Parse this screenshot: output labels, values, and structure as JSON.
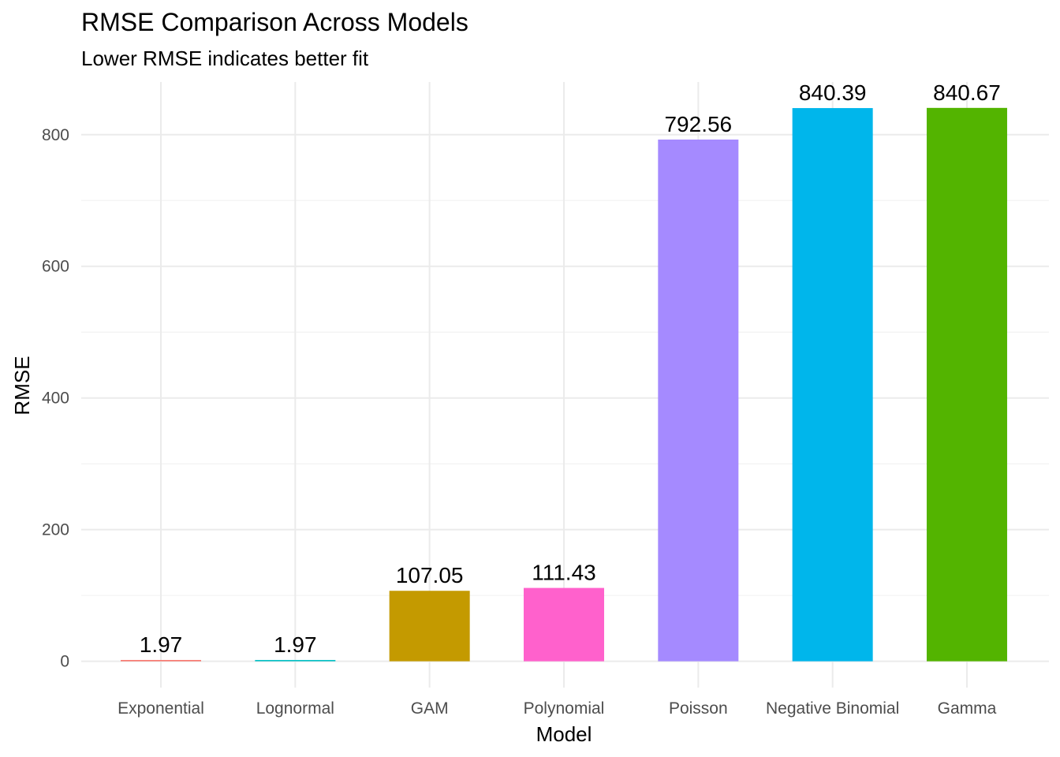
{
  "chart_data": {
    "type": "bar",
    "title": "RMSE Comparison Across Models",
    "subtitle": "Lower RMSE indicates better fit",
    "xlabel": "Model",
    "ylabel": "RMSE",
    "categories": [
      "Exponential",
      "Lognormal",
      "GAM",
      "Polynomial",
      "Poisson",
      "Negative Binomial",
      "Gamma"
    ],
    "values": [
      1.97,
      1.97,
      107.05,
      111.43,
      792.56,
      840.39,
      840.67
    ],
    "value_labels": [
      "1.97",
      "1.97",
      "107.05",
      "111.43",
      "792.56",
      "840.39",
      "840.67"
    ],
    "colors": [
      "#F8766D",
      "#00BFC4",
      "#C49A00",
      "#FF61CC",
      "#A58AFF",
      "#00B6EB",
      "#53B400"
    ],
    "yticks": [
      0,
      200,
      400,
      600,
      800
    ],
    "ylim": [
      -40,
      880
    ],
    "grid": true,
    "legend": "none"
  }
}
